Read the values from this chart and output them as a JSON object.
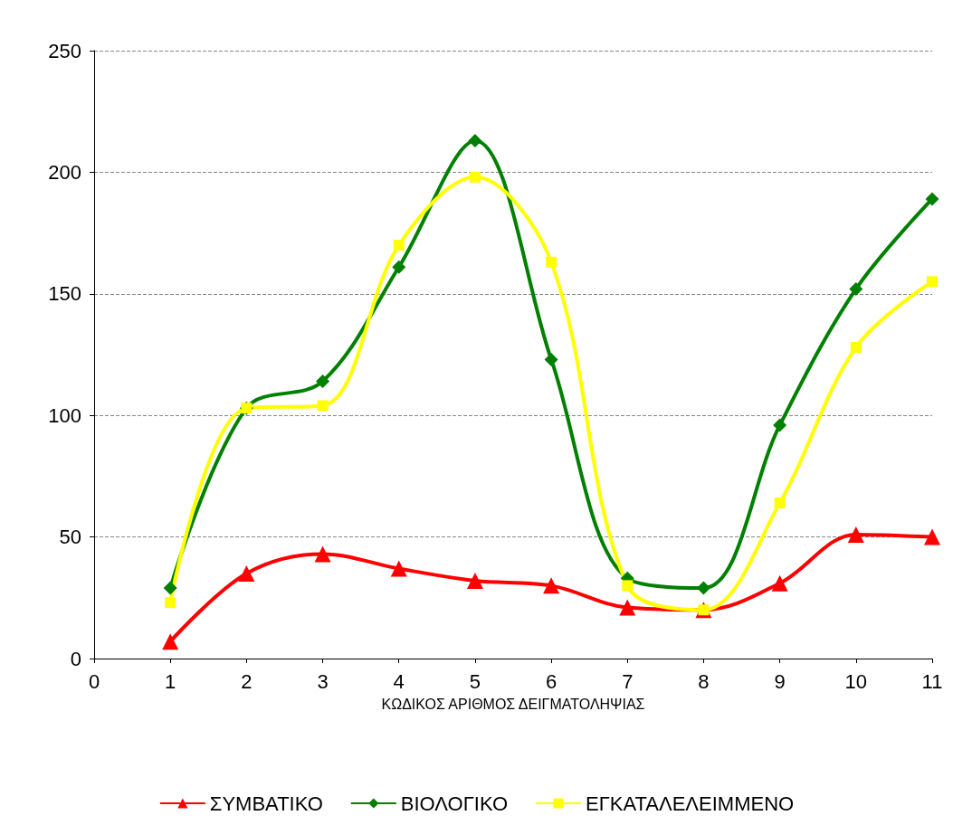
{
  "chart_data": {
    "type": "line",
    "xlabel": "ΚΩΔΙΚΟΣ ΑΡΙΘΜΟΣ ΔΕΙΓΜΑΤΟΛΗΨΙΑΣ",
    "x": [
      1,
      2,
      3,
      4,
      5,
      6,
      7,
      8,
      9,
      10,
      11
    ],
    "xlim": [
      0,
      11
    ],
    "xticks": [
      0,
      1,
      2,
      3,
      4,
      5,
      6,
      7,
      8,
      9,
      10,
      11
    ],
    "ylim": [
      0,
      250
    ],
    "yticks": [
      0,
      50,
      100,
      150,
      200,
      250
    ],
    "grid": "y",
    "legend": "bottom",
    "line_style": "solid",
    "series": [
      {
        "name": "ΣΥΜΒΑΤΙΚΟ",
        "color": "#ff0000",
        "marker": "triangle",
        "values": [
          7,
          35,
          43,
          37,
          32,
          30,
          21,
          20,
          31,
          51,
          50
        ]
      },
      {
        "name": "ΒΙΟΛΟΓΙΚΟ",
        "color": "#008000",
        "marker": "diamond",
        "values": [
          29,
          103,
          114,
          161,
          213,
          123,
          33,
          29,
          96,
          152,
          189
        ]
      },
      {
        "name": "ΕΓΚΑΤΑΛΕΛΕΙΜΜΕΝΟ",
        "color": "#ffff00",
        "marker": "square",
        "values": [
          23,
          103,
          104,
          170,
          198,
          163,
          30,
          20,
          64,
          128,
          155
        ]
      }
    ]
  }
}
